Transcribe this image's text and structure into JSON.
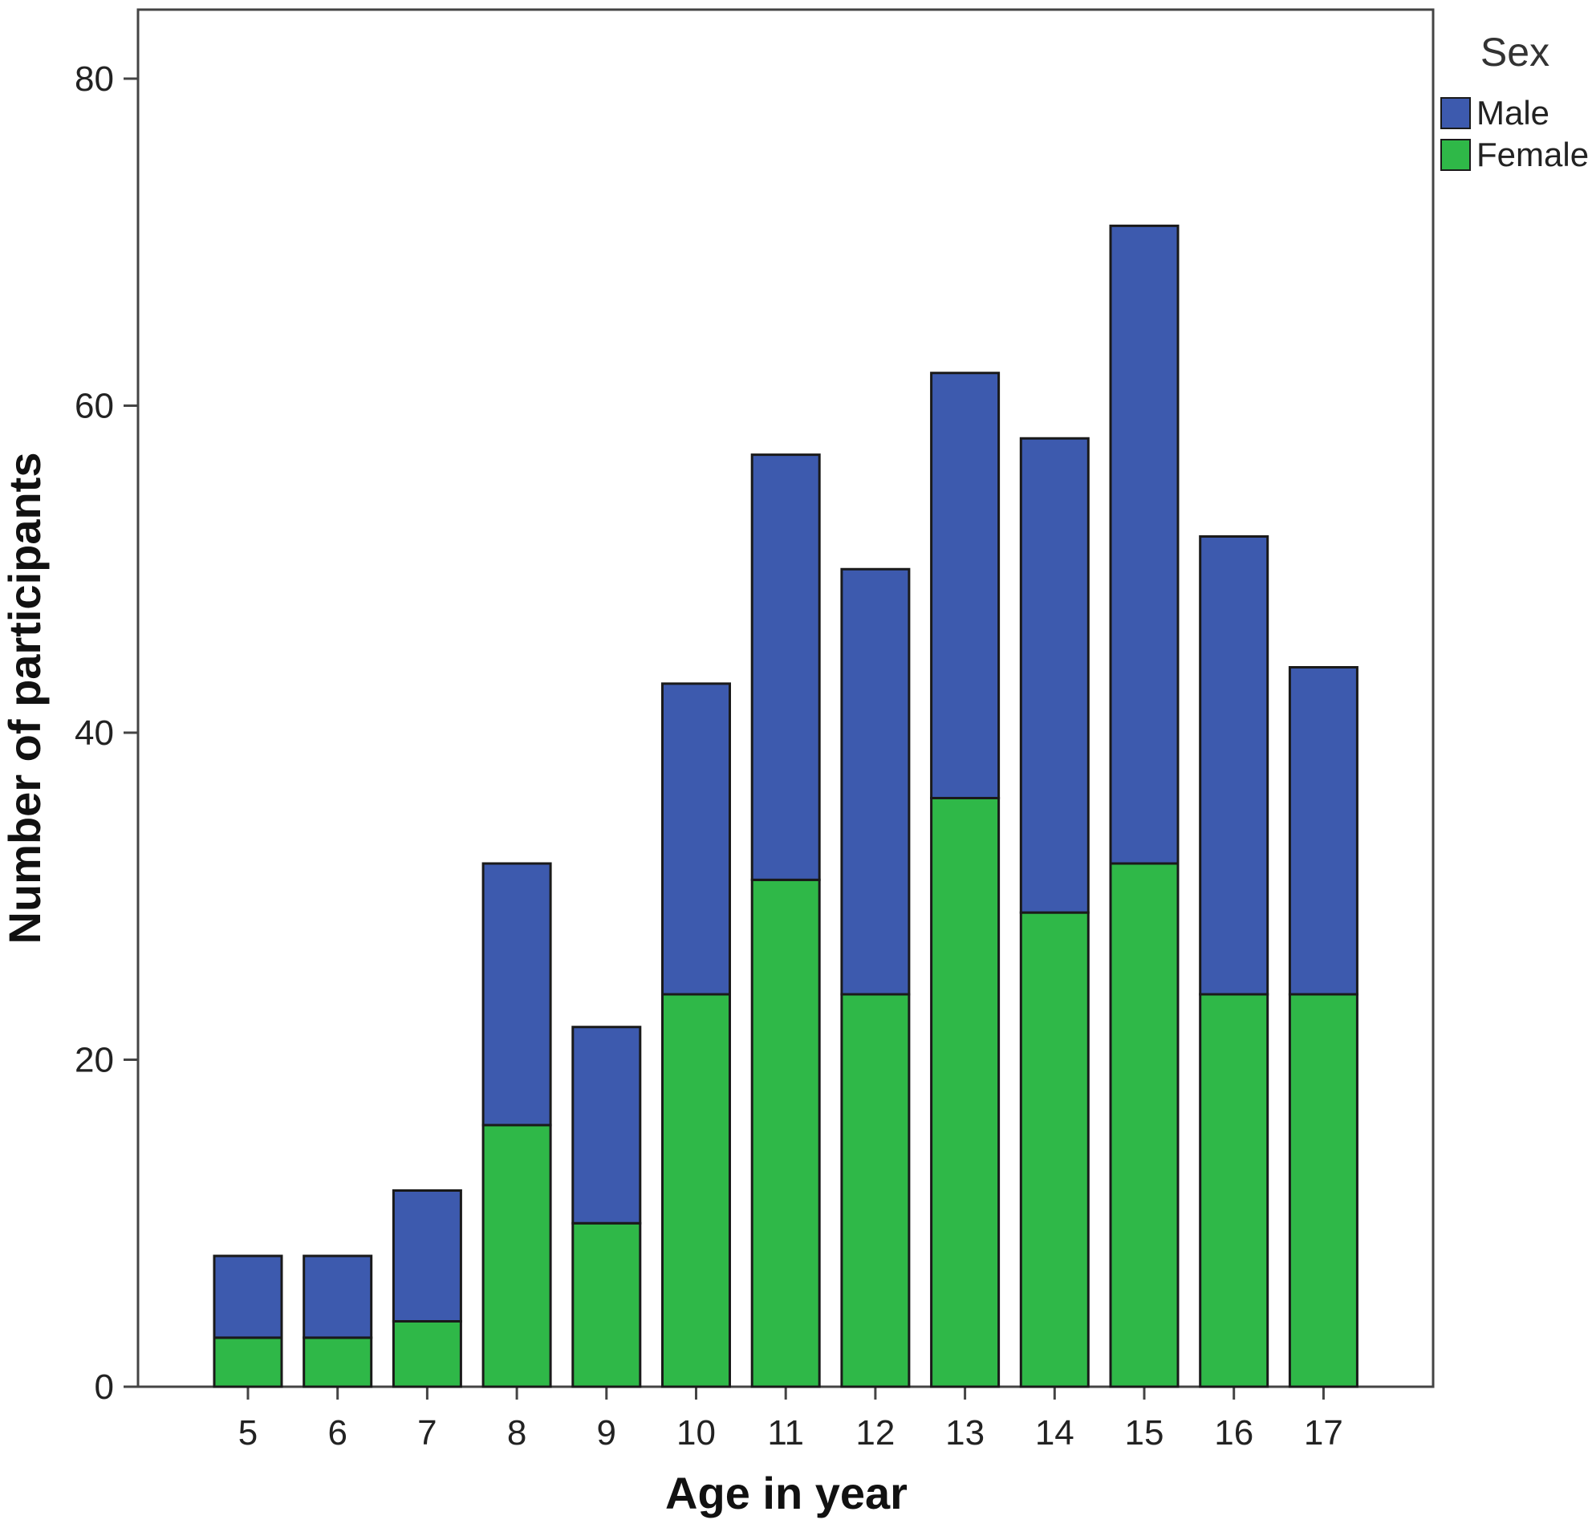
{
  "chart_data": {
    "type": "bar",
    "stacked": true,
    "categories": [
      "5",
      "6",
      "7",
      "8",
      "9",
      "10",
      "11",
      "12",
      "13",
      "14",
      "15",
      "16",
      "17"
    ],
    "series": [
      {
        "name": "Female",
        "color": "#2fb848",
        "values": [
          3,
          3,
          4,
          16,
          10,
          24,
          31,
          24,
          36,
          29,
          32,
          24,
          24
        ]
      },
      {
        "name": "Male",
        "color": "#3d5aae",
        "values": [
          5,
          5,
          8,
          16,
          12,
          19,
          26,
          26,
          26,
          29,
          39,
          28,
          20
        ]
      }
    ],
    "xlabel": "Age in year",
    "ylabel": "Number of participants",
    "ylim": [
      0,
      80
    ],
    "yticks": [
      "0",
      "20",
      "40",
      "60",
      "80"
    ],
    "legend": {
      "title": "Sex",
      "placement": "top-right",
      "entries": [
        "Male",
        "Female"
      ]
    },
    "grid": false
  }
}
